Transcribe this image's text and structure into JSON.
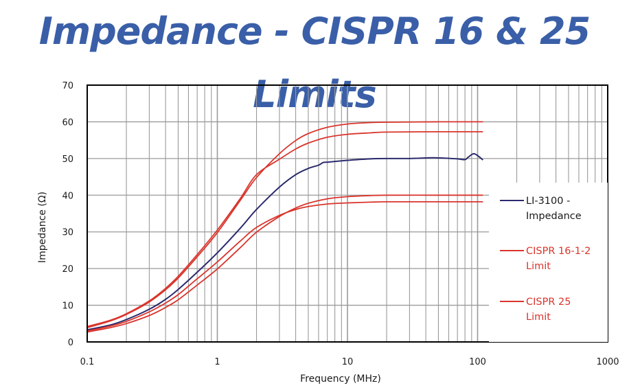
{
  "title": "Impedance - CISPR 16 & 25 Limits",
  "colors": {
    "title": "#3a5fa8",
    "grid": "#9a9a9a",
    "axes": "#000000",
    "impedance": "#2b2a6e",
    "limit": "#d9342b"
  },
  "chart_data": {
    "type": "line",
    "title": "Impedance - CISPR 16 & 25 Limits",
    "xlabel": "Frequency (MHz)",
    "ylabel": "Impedance (Ω)",
    "x_scale": "log",
    "xlim": [
      0.1,
      1000
    ],
    "ylim": [
      0,
      70
    ],
    "x_ticks": [
      0.1,
      1,
      10,
      100,
      1000
    ],
    "x_tick_labels": [
      "0.1",
      "1",
      "10",
      "100",
      "1000"
    ],
    "y_ticks": [
      0,
      10,
      20,
      30,
      40,
      50,
      60,
      70
    ],
    "y_tick_labels": [
      "0",
      "10",
      "20",
      "30",
      "40",
      "50",
      "60",
      "70"
    ],
    "grid": true,
    "legend_position": "right",
    "series": [
      {
        "name": "LI-3100 - Impedance",
        "legend_lines": [
          "LI-3100 -",
          "Impedance"
        ],
        "color": "#2b2a6e",
        "points": [
          [
            0.1,
            3.3
          ],
          [
            0.15,
            4.6
          ],
          [
            0.2,
            6.1
          ],
          [
            0.3,
            8.9
          ],
          [
            0.4,
            11.6
          ],
          [
            0.5,
            14.3
          ],
          [
            0.7,
            19.0
          ],
          [
            1,
            24.3
          ],
          [
            1.5,
            31.0
          ],
          [
            2,
            36.1
          ],
          [
            3,
            42.2
          ],
          [
            4,
            45.6
          ],
          [
            5,
            47.3
          ],
          [
            6,
            48.2
          ],
          [
            6.5,
            48.9
          ],
          [
            7,
            49.0
          ],
          [
            8,
            49.2
          ],
          [
            10,
            49.5
          ],
          [
            15,
            49.9
          ],
          [
            20,
            50.0
          ],
          [
            30,
            50.0
          ],
          [
            45,
            50.2
          ],
          [
            55,
            50.1
          ],
          [
            70,
            49.9
          ],
          [
            80,
            49.7
          ],
          [
            85,
            50.4
          ],
          [
            93,
            51.3
          ],
          [
            100,
            50.8
          ],
          [
            110,
            49.6
          ]
        ]
      },
      {
        "name": "CISPR 16-1-2 Limit (upper)",
        "legend_lines": [
          "CISPR 16-1-2",
          "Limit"
        ],
        "color": "#d9342b",
        "points": [
          [
            0.1,
            3.9
          ],
          [
            0.15,
            5.7
          ],
          [
            0.2,
            7.5
          ],
          [
            0.3,
            10.9
          ],
          [
            0.4,
            14.2
          ],
          [
            0.5,
            17.4
          ],
          [
            0.7,
            23.2
          ],
          [
            1,
            29.8
          ],
          [
            1.5,
            38.6
          ],
          [
            2,
            44.8
          ],
          [
            3,
            51.3
          ],
          [
            4,
            54.9
          ],
          [
            5,
            56.8
          ],
          [
            7,
            58.5
          ],
          [
            10,
            59.4
          ],
          [
            15,
            59.8
          ],
          [
            20,
            59.9
          ],
          [
            50,
            60.0
          ],
          [
            110,
            60.0
          ]
        ]
      },
      {
        "name": "CISPR 16-1-2 Limit (lower)",
        "color": "#d9342b",
        "points": [
          [
            0.1,
            2.7
          ],
          [
            0.15,
            3.9
          ],
          [
            0.2,
            5.0
          ],
          [
            0.3,
            7.2
          ],
          [
            0.4,
            9.4
          ],
          [
            0.5,
            11.5
          ],
          [
            0.7,
            15.5
          ],
          [
            1,
            19.9
          ],
          [
            1.5,
            25.7
          ],
          [
            2,
            29.9
          ],
          [
            3,
            34.2
          ],
          [
            4,
            36.5
          ],
          [
            5,
            37.8
          ],
          [
            7,
            39.0
          ],
          [
            10,
            39.6
          ],
          [
            15,
            39.9
          ],
          [
            20,
            40.0
          ],
          [
            50,
            40.0
          ],
          [
            110,
            40.0
          ]
        ]
      },
      {
        "name": "CISPR 25 Limit (upper)",
        "legend_lines": [
          "CISPR 25",
          "Limit"
        ],
        "color": "#d9342b",
        "points": [
          [
            0.1,
            4.2
          ],
          [
            0.15,
            5.9
          ],
          [
            0.2,
            7.7
          ],
          [
            0.3,
            11.2
          ],
          [
            0.4,
            14.6
          ],
          [
            0.5,
            17.9
          ],
          [
            0.7,
            23.8
          ],
          [
            1,
            30.5
          ],
          [
            1.5,
            39.1
          ],
          [
            2,
            45.6
          ],
          [
            3,
            49.8
          ],
          [
            4,
            52.6
          ],
          [
            5,
            54.2
          ],
          [
            7,
            55.8
          ],
          [
            10,
            56.6
          ],
          [
            15,
            57.0
          ],
          [
            20,
            57.2
          ],
          [
            50,
            57.3
          ],
          [
            110,
            57.3
          ]
        ]
      },
      {
        "name": "CISPR 25 Limit (lower)",
        "color": "#d9342b",
        "points": [
          [
            0.1,
            3.0
          ],
          [
            0.15,
            4.3
          ],
          [
            0.2,
            5.6
          ],
          [
            0.3,
            8.2
          ],
          [
            0.4,
            10.6
          ],
          [
            0.5,
            12.9
          ],
          [
            0.7,
            17.2
          ],
          [
            1,
            21.8
          ],
          [
            1.5,
            27.5
          ],
          [
            2,
            31.2
          ],
          [
            3,
            34.5
          ],
          [
            4,
            36.1
          ],
          [
            5,
            36.9
          ],
          [
            7,
            37.6
          ],
          [
            10,
            37.9
          ],
          [
            15,
            38.1
          ],
          [
            20,
            38.2
          ],
          [
            50,
            38.2
          ],
          [
            110,
            38.2
          ]
        ]
      }
    ]
  }
}
